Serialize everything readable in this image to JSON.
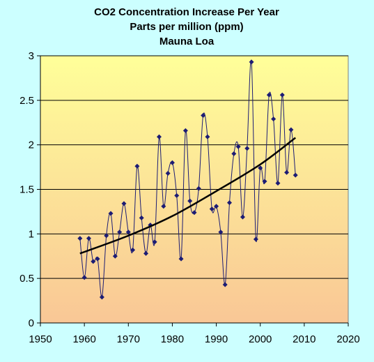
{
  "chart_data": {
    "type": "line",
    "title": [
      "CO2 Concentration Increase Per Year",
      "Parts per million (ppm)",
      "Mauna Loa"
    ],
    "xlabel": "",
    "ylabel": "",
    "xlim": [
      1950,
      2020
    ],
    "ylim": [
      0,
      3
    ],
    "xticks": [
      1950,
      1960,
      1970,
      1980,
      1990,
      2000,
      2010,
      2020
    ],
    "yticks": [
      0,
      0.5,
      1,
      1.5,
      2,
      2.5,
      3
    ],
    "grid": "horizontal",
    "legend": "none",
    "plot_background_top": "#ffff99",
    "plot_background_bottom": "#f9c796",
    "series": [
      {
        "marker": "diamond",
        "line": "smooth",
        "color": "#1c1c74",
        "x": [
          1959,
          1960,
          1961,
          1962,
          1963,
          1964,
          1965,
          1966,
          1967,
          1968,
          1969,
          1970,
          1971,
          1972,
          1973,
          1974,
          1975,
          1976,
          1977,
          1978,
          1979,
          1980,
          1981,
          1982,
          1983,
          1984,
          1985,
          1986,
          1987,
          1988,
          1989,
          1990,
          1991,
          1992,
          1993,
          1994,
          1995,
          1996,
          1997,
          1998,
          1999,
          2000,
          2001,
          2002,
          2003,
          2004,
          2005,
          2006,
          2007,
          2008
        ],
        "y": [
          0.95,
          0.51,
          0.95,
          0.69,
          0.72,
          0.29,
          0.98,
          1.23,
          0.75,
          1.02,
          1.34,
          1.02,
          0.82,
          1.76,
          1.18,
          0.78,
          1.1,
          0.91,
          2.09,
          1.31,
          1.68,
          1.8,
          1.43,
          0.72,
          2.16,
          1.37,
          1.24,
          1.51,
          2.33,
          2.09,
          1.28,
          1.31,
          1.02,
          0.43,
          1.35,
          1.9,
          1.98,
          1.19,
          1.96,
          2.93,
          0.94,
          1.74,
          1.59,
          2.56,
          2.29,
          1.57,
          2.56,
          1.69,
          2.17,
          1.66
        ]
      },
      {
        "type": "trendline",
        "fit": "exponential",
        "color": "#000000",
        "x": [
          1959,
          1970,
          1980,
          1990,
          2000,
          2008
        ],
        "y": [
          0.78,
          0.98,
          1.2,
          1.48,
          1.78,
          2.08
        ]
      }
    ]
  }
}
